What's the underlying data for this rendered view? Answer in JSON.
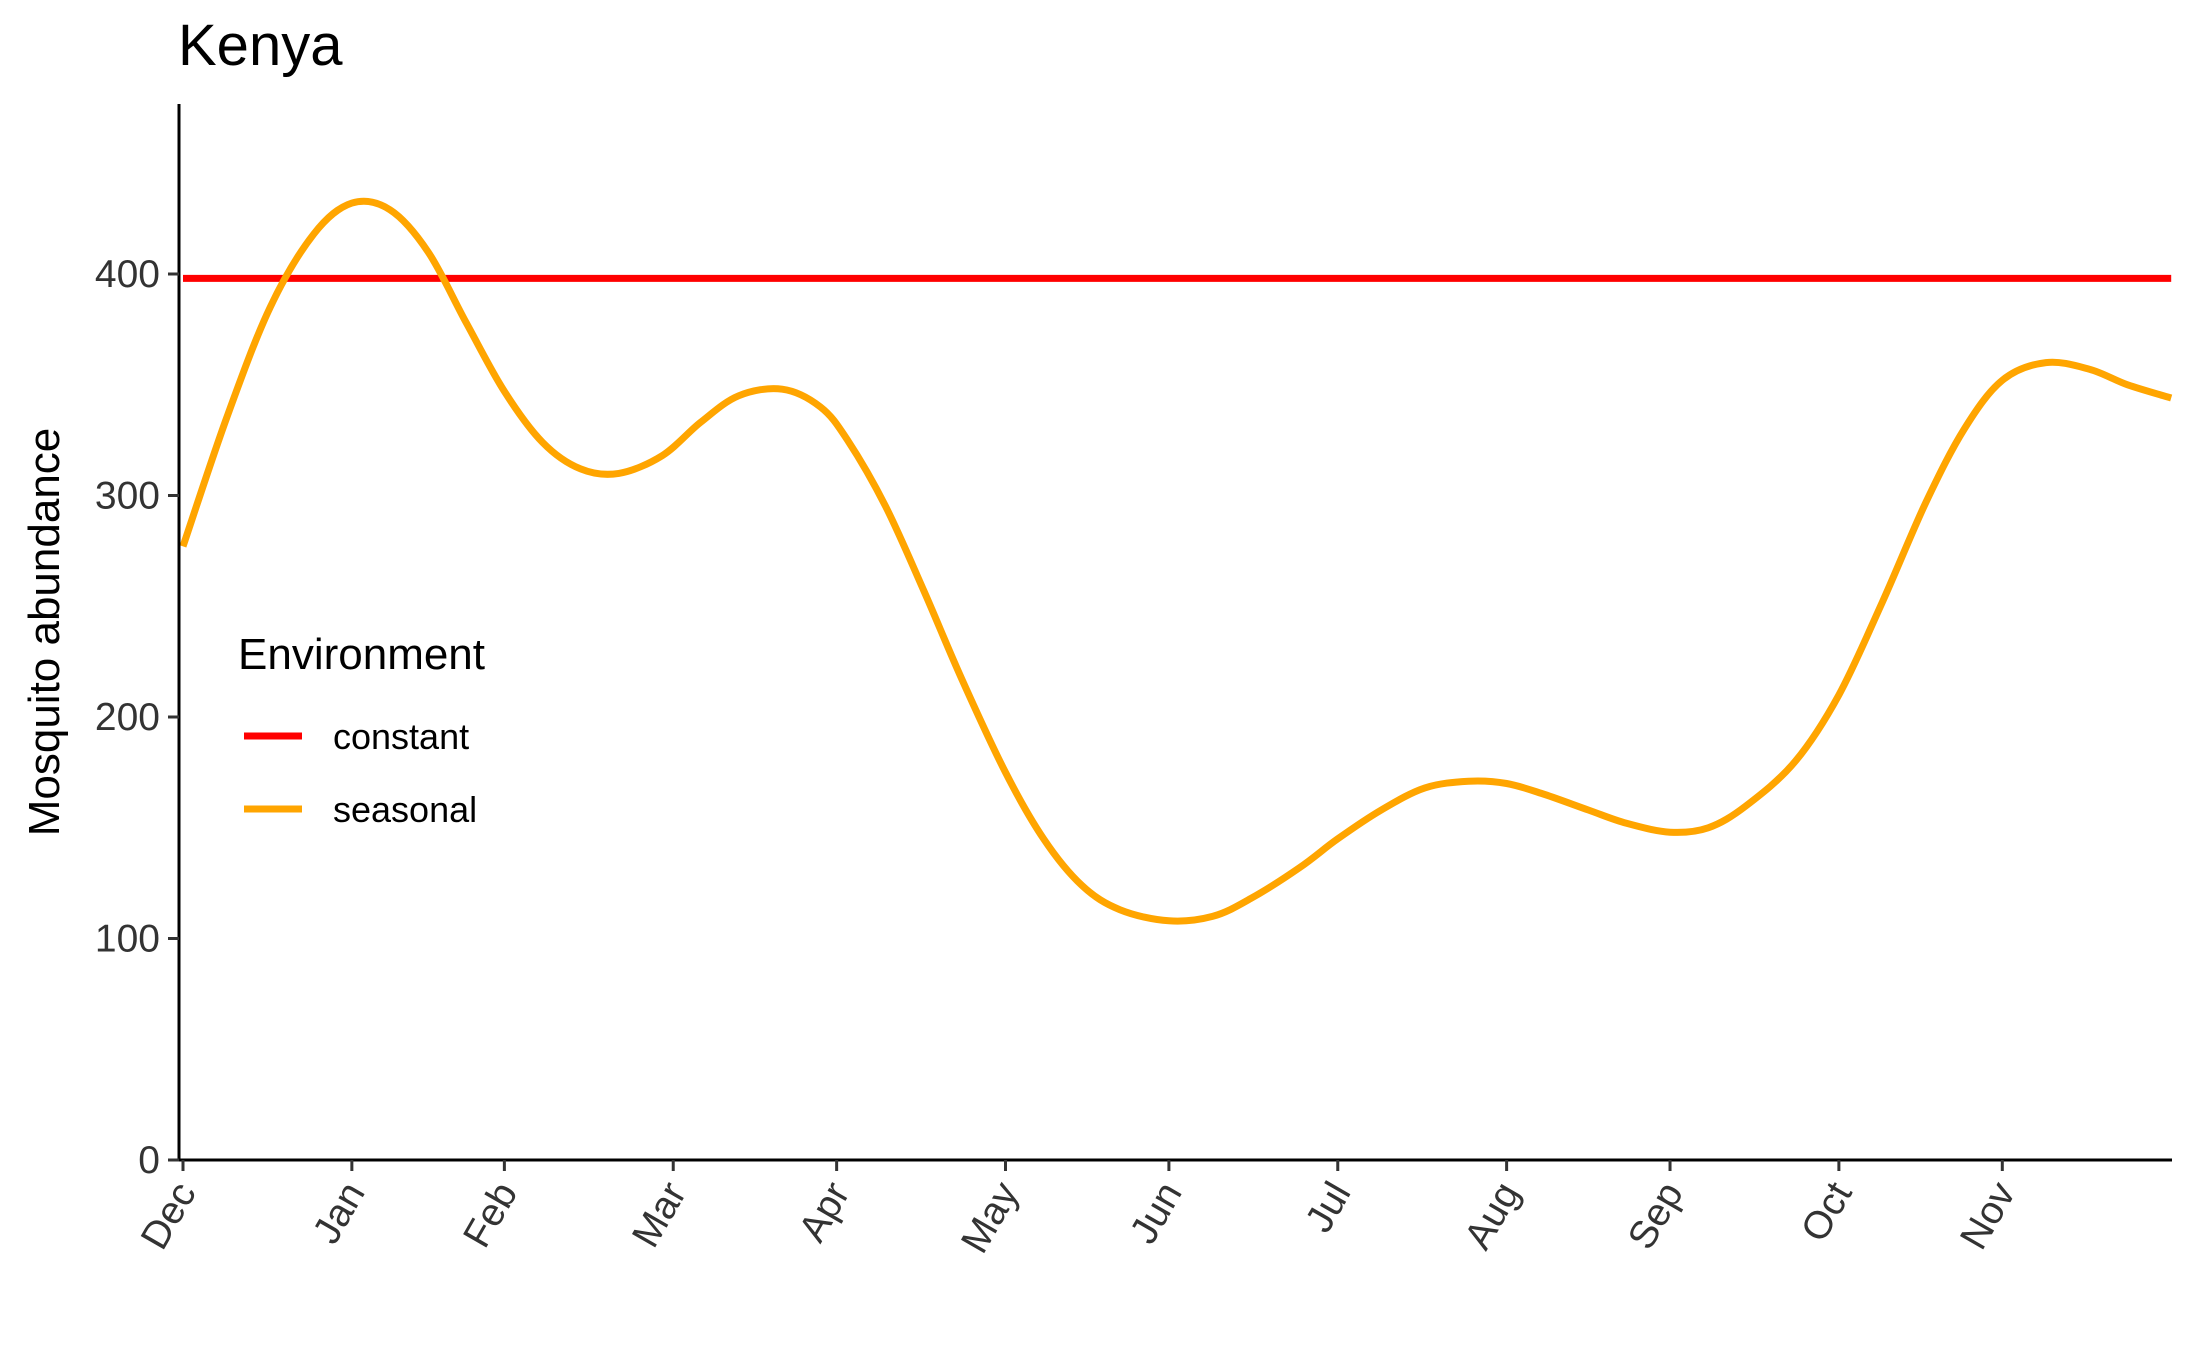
{
  "chart_data": {
    "type": "line",
    "title": "Kenya",
    "xlabel": "",
    "ylabel": "Mosquito abundance",
    "ylim": [
      0,
      475
    ],
    "yticks": [
      0,
      100,
      200,
      300,
      400
    ],
    "xlim": [
      0,
      365
    ],
    "x_ticks": [
      {
        "label": "Dec",
        "day": 0
      },
      {
        "label": "Jan",
        "day": 31
      },
      {
        "label": "Feb",
        "day": 59
      },
      {
        "label": "Mar",
        "day": 90
      },
      {
        "label": "Apr",
        "day": 120
      },
      {
        "label": "May",
        "day": 151
      },
      {
        "label": "Jun",
        "day": 181
      },
      {
        "label": "Jul",
        "day": 212
      },
      {
        "label": "Aug",
        "day": 243
      },
      {
        "label": "Sep",
        "day": 273
      },
      {
        "label": "Oct",
        "day": 304
      },
      {
        "label": "Nov",
        "day": 334
      }
    ],
    "grid": false,
    "legend": {
      "title": "Environment",
      "position": "left"
    },
    "series": [
      {
        "name": "constant",
        "color": "#ff0000",
        "x": [
          0,
          365
        ],
        "y": [
          398,
          398
        ]
      },
      {
        "name": "seasonal",
        "color": "#ffa500",
        "x": [
          0,
          8,
          16,
          24,
          31,
          38,
          45,
          52,
          59,
          66,
          73,
          80,
          88,
          95,
          102,
          110,
          117,
          122,
          129,
          136,
          143,
          151,
          158,
          165,
          172,
          181,
          189,
          196,
          205,
          212,
          220,
          228,
          236,
          243,
          250,
          258,
          265,
          273,
          280,
          287,
          296,
          304,
          312,
          320,
          327,
          334,
          342,
          350,
          357,
          365
        ],
        "y": [
          277,
          335,
          385,
          418,
          432,
          429,
          410,
          378,
          347,
          324,
          312,
          310,
          318,
          333,
          345,
          348,
          340,
          325,
          295,
          257,
          217,
          175,
          145,
          124,
          113,
          108,
          110,
          118,
          132,
          145,
          158,
          168,
          171,
          170,
          165,
          158,
          152,
          148,
          150,
          160,
          180,
          210,
          252,
          297,
          330,
          352,
          360,
          357,
          350,
          344
        ]
      }
    ]
  }
}
